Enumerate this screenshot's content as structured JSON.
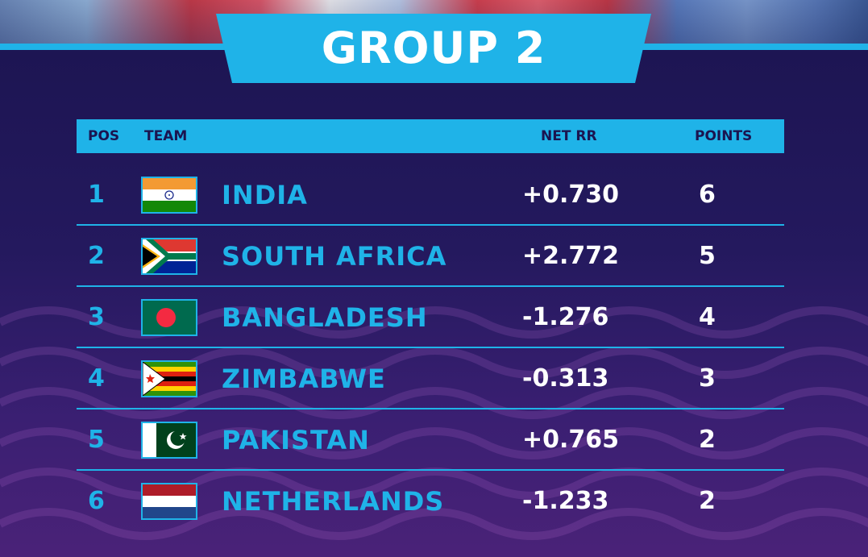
{
  "title": "GROUP 2",
  "columns": {
    "pos": "POS",
    "team": "TEAM",
    "net_rr": "NET RR",
    "points": "POINTS"
  },
  "colors": {
    "accent": "#1fb3e8",
    "background": "#1b1450",
    "text": "#ffffff"
  },
  "rows": [
    {
      "pos": "1",
      "team": "INDIA",
      "net_rr": "+0.730",
      "points": "6",
      "flag": "india-flag-icon"
    },
    {
      "pos": "2",
      "team": "SOUTH AFRICA",
      "net_rr": "+2.772",
      "points": "5",
      "flag": "south-africa-flag-icon"
    },
    {
      "pos": "3",
      "team": "BANGLADESH",
      "net_rr": "-1.276",
      "points": "4",
      "flag": "bangladesh-flag-icon"
    },
    {
      "pos": "4",
      "team": "ZIMBABWE",
      "net_rr": "-0.313",
      "points": "3",
      "flag": "zimbabwe-flag-icon"
    },
    {
      "pos": "5",
      "team": "PAKISTAN",
      "net_rr": "+0.765",
      "points": "2",
      "flag": "pakistan-flag-icon"
    },
    {
      "pos": "6",
      "team": "NETHERLANDS",
      "net_rr": "-1.233",
      "points": "2",
      "flag": "netherlands-flag-icon"
    }
  ]
}
